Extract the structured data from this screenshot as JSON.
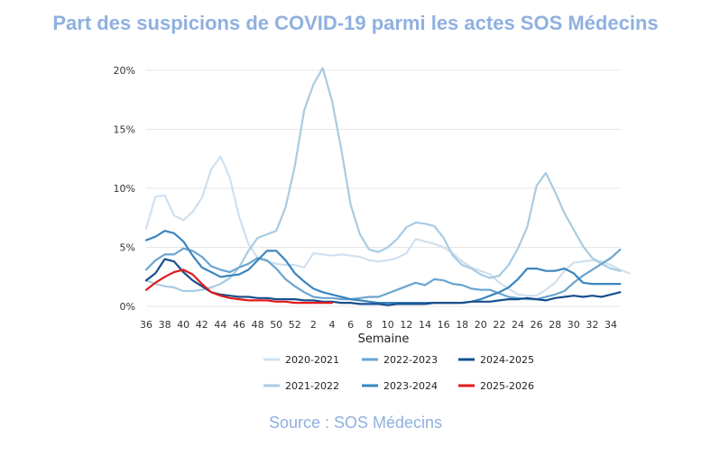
{
  "title": "Part des suspicions de COVID-19 parmi les actes SOS Médecins",
  "source": "Source : SOS Médecins",
  "chart_data": {
    "type": "line",
    "title": "Part des suspicions de COVID-19 parmi les actes SOS Médecins",
    "xlabel": "Semaine",
    "ylabel": "",
    "x_tick_labels": [
      "36",
      "38",
      "40",
      "42",
      "44",
      "46",
      "48",
      "50",
      "52",
      "2",
      "4",
      "6",
      "8",
      "10",
      "12",
      "14",
      "16",
      "18",
      "20",
      "22",
      "24",
      "26",
      "28",
      "30",
      "32",
      "34"
    ],
    "y_tick_labels": [
      "0%",
      "5%",
      "10%",
      "15%",
      "20%"
    ],
    "y_ticks": [
      0,
      5,
      10,
      15,
      20
    ],
    "ylim": [
      0,
      20.5
    ],
    "grid": true,
    "legend_position": "bottom",
    "series": [
      {
        "name": "2020-2021",
        "color": "#cfe0f0",
        "values": [
          6.6,
          9.3,
          9.4,
          7.7,
          7.3,
          8.0,
          9.2,
          11.6,
          12.7,
          10.9,
          7.6,
          5.3,
          4.1,
          3.8,
          3.6,
          3.5,
          3.5,
          3.3,
          4.5,
          4.4,
          4.3,
          4.4,
          4.3,
          4.2,
          3.9,
          3.8,
          3.9,
          4.1,
          4.5,
          5.7,
          5.5,
          5.3,
          5.0,
          4.5,
          3.8,
          3.3,
          3.0,
          2.7,
          2.0,
          1.5,
          1.0,
          0.9,
          0.9,
          1.4,
          2.0,
          3.0,
          3.7,
          3.8,
          3.9,
          3.8,
          3.5,
          3.1,
          2.8
        ]
      },
      {
        "name": "2021-2022",
        "color": "#a8cbe2",
        "values": [
          2.2,
          1.9,
          1.7,
          1.6,
          1.3,
          1.3,
          1.4,
          1.6,
          1.9,
          2.4,
          3.3,
          4.7,
          5.8,
          6.1,
          6.4,
          8.4,
          11.9,
          16.6,
          18.8,
          20.2,
          17.4,
          13.3,
          8.6,
          6.1,
          4.8,
          4.6,
          5.0,
          5.7,
          6.7,
          7.1,
          7.0,
          6.8,
          5.8,
          4.3,
          3.5,
          3.2,
          2.7,
          2.4,
          2.6,
          3.5,
          4.9,
          6.7,
          10.2,
          11.3,
          9.7,
          7.9,
          6.5,
          5.1,
          4.1,
          3.6,
          3.2,
          3.0
        ]
      },
      {
        "name": "2022-2023",
        "color": "#6ba4cf",
        "values": [
          3.1,
          3.9,
          4.4,
          4.4,
          4.9,
          4.7,
          4.2,
          3.4,
          3.1,
          2.9,
          3.3,
          3.6,
          4.1,
          3.9,
          3.2,
          2.3,
          1.7,
          1.2,
          0.8,
          0.7,
          0.7,
          0.6,
          0.6,
          0.7,
          0.8,
          0.8,
          1.1,
          1.4,
          1.7,
          2.0,
          1.8,
          2.3,
          2.2,
          1.9,
          1.8,
          1.5,
          1.4,
          1.4,
          1.1,
          0.8,
          0.7,
          0.6,
          0.6,
          0.8,
          1.0,
          1.3,
          2.0,
          2.6,
          3.1,
          3.6,
          4.1,
          4.8
        ]
      },
      {
        "name": "2023-2024",
        "color": "#3b85bd",
        "values": [
          5.6,
          5.9,
          6.4,
          6.2,
          5.5,
          4.3,
          3.3,
          2.9,
          2.5,
          2.6,
          2.7,
          3.1,
          3.9,
          4.7,
          4.7,
          3.9,
          2.8,
          2.1,
          1.5,
          1.2,
          1.0,
          0.8,
          0.6,
          0.5,
          0.4,
          0.3,
          0.3,
          0.3,
          0.3,
          0.3,
          0.3,
          0.3,
          0.3,
          0.3,
          0.3,
          0.4,
          0.6,
          0.9,
          1.2,
          1.6,
          2.3,
          3.2,
          3.2,
          3.0,
          3.0,
          3.2,
          2.8,
          2.0,
          1.9,
          1.9,
          1.9,
          1.9
        ]
      },
      {
        "name": "2024-2025",
        "color": "#174f8c",
        "values": [
          2.2,
          2.8,
          4.0,
          3.8,
          2.9,
          2.2,
          1.7,
          1.2,
          1.0,
          0.9,
          0.8,
          0.8,
          0.7,
          0.7,
          0.6,
          0.6,
          0.6,
          0.5,
          0.5,
          0.4,
          0.4,
          0.3,
          0.3,
          0.2,
          0.2,
          0.2,
          0.1,
          0.2,
          0.2,
          0.2,
          0.2,
          0.3,
          0.3,
          0.3,
          0.3,
          0.4,
          0.4,
          0.4,
          0.5,
          0.6,
          0.6,
          0.7,
          0.6,
          0.5,
          0.7,
          0.8,
          0.9,
          0.8,
          0.9,
          0.8,
          1.0,
          1.2
        ]
      },
      {
        "name": "2025-2026",
        "color": "#e31a1c",
        "values": [
          1.4,
          2.0,
          2.5,
          2.9,
          3.1,
          2.7,
          1.9,
          1.2,
          0.9,
          0.7,
          0.6,
          0.5,
          0.5,
          0.5,
          0.4,
          0.4,
          0.3,
          0.3,
          0.3,
          0.3,
          0.3
        ]
      }
    ]
  }
}
